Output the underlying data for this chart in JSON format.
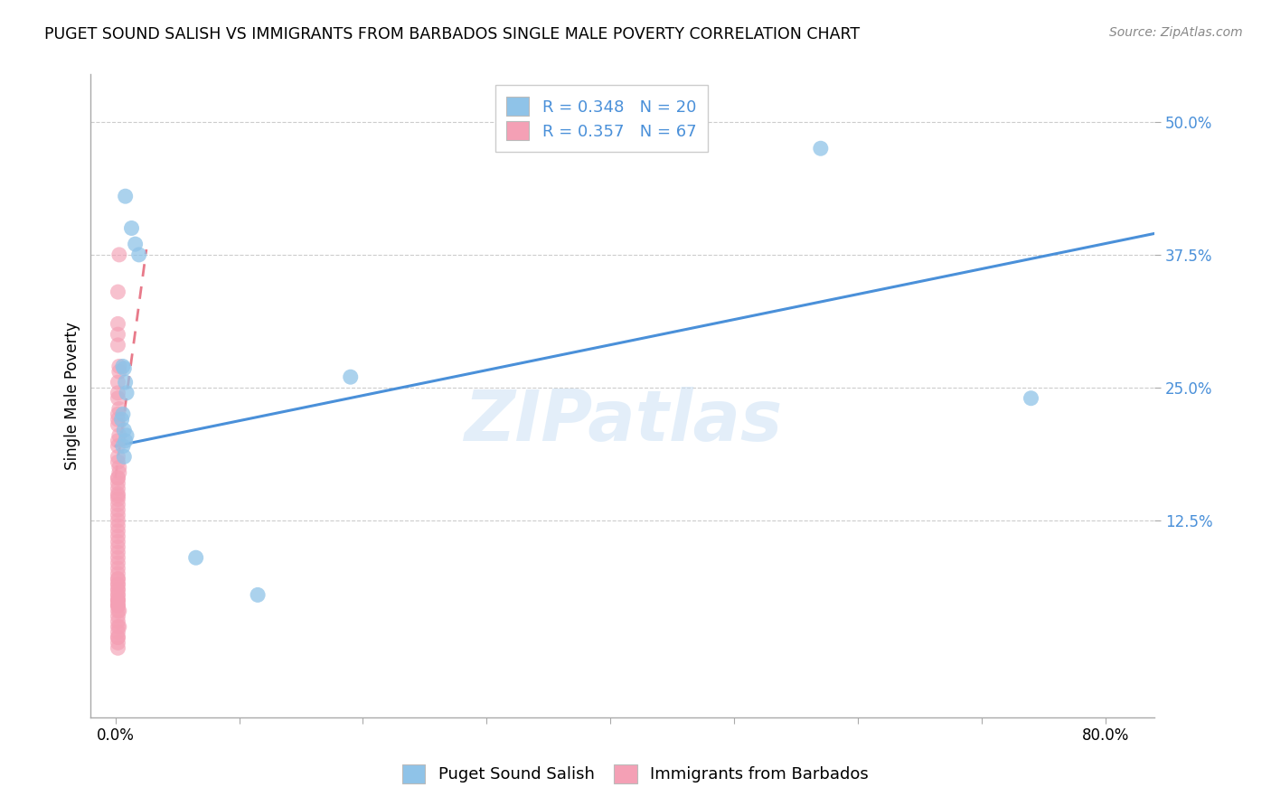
{
  "title": "PUGET SOUND SALISH VS IMMIGRANTS FROM BARBADOS SINGLE MALE POVERTY CORRELATION CHART",
  "source": "Source: ZipAtlas.com",
  "ylabel": "Single Male Poverty",
  "ytick_labels": [
    "12.5%",
    "25.0%",
    "37.5%",
    "50.0%"
  ],
  "ytick_values": [
    0.125,
    0.25,
    0.375,
    0.5
  ],
  "xtick_values": [
    0.0,
    0.1,
    0.2,
    0.3,
    0.4,
    0.5,
    0.6,
    0.7,
    0.8
  ],
  "xlim": [
    -0.02,
    0.84
  ],
  "ylim": [
    -0.06,
    0.545
  ],
  "blue_color": "#8fc3e8",
  "pink_color": "#f4a0b5",
  "blue_line_color": "#4a90d9",
  "pink_line_color": "#e87a8a",
  "legend_R_blue": "0.348",
  "legend_N_blue": "20",
  "legend_R_pink": "0.357",
  "legend_N_pink": "67",
  "watermark": "ZIPatlas",
  "legend_label_blue": "Puget Sound Salish",
  "legend_label_pink": "Immigrants from Barbados",
  "blue_scatter_x": [
    0.008,
    0.013,
    0.016,
    0.019,
    0.006,
    0.007,
    0.008,
    0.009,
    0.006,
    0.005,
    0.007,
    0.008,
    0.19,
    0.006,
    0.007,
    0.009,
    0.57,
    0.74,
    0.065,
    0.115
  ],
  "blue_scatter_y": [
    0.43,
    0.4,
    0.385,
    0.375,
    0.27,
    0.268,
    0.255,
    0.245,
    0.225,
    0.22,
    0.21,
    0.2,
    0.26,
    0.195,
    0.185,
    0.205,
    0.475,
    0.24,
    0.09,
    0.055
  ],
  "pink_scatter_x": [
    0.003,
    0.002,
    0.002,
    0.002,
    0.002,
    0.003,
    0.003,
    0.002,
    0.002,
    0.002,
    0.003,
    0.002,
    0.002,
    0.002,
    0.003,
    0.002,
    0.002,
    0.002,
    0.002,
    0.003,
    0.003,
    0.002,
    0.002,
    0.002,
    0.002,
    0.002,
    0.002,
    0.002,
    0.002,
    0.002,
    0.002,
    0.002,
    0.002,
    0.002,
    0.002,
    0.002,
    0.002,
    0.002,
    0.002,
    0.002,
    0.002,
    0.002,
    0.002,
    0.002,
    0.002,
    0.002,
    0.002,
    0.002,
    0.003,
    0.002,
    0.002,
    0.003,
    0.002,
    0.002,
    0.002,
    0.002,
    0.002,
    0.002,
    0.002,
    0.002,
    0.002,
    0.002,
    0.002,
    0.002,
    0.002,
    0.002,
    0.002
  ],
  "pink_scatter_y": [
    0.375,
    0.34,
    0.31,
    0.3,
    0.29,
    0.27,
    0.265,
    0.255,
    0.245,
    0.24,
    0.23,
    0.225,
    0.22,
    0.215,
    0.205,
    0.2,
    0.195,
    0.185,
    0.18,
    0.175,
    0.17,
    0.165,
    0.165,
    0.16,
    0.155,
    0.15,
    0.148,
    0.145,
    0.14,
    0.135,
    0.13,
    0.125,
    0.12,
    0.115,
    0.11,
    0.105,
    0.1,
    0.095,
    0.09,
    0.085,
    0.08,
    0.075,
    0.07,
    0.065,
    0.06,
    0.055,
    0.05,
    0.045,
    0.04,
    0.035,
    0.03,
    0.025,
    0.025,
    0.02,
    0.015,
    0.015,
    0.01,
    0.005,
    0.05,
    0.04,
    0.045,
    0.06,
    0.07,
    0.065,
    0.055,
    0.05,
    0.045
  ],
  "blue_line_x": [
    0.0,
    0.84
  ],
  "blue_line_y": [
    0.195,
    0.395
  ],
  "pink_line_x": [
    0.0,
    0.025
  ],
  "pink_line_y": [
    0.165,
    0.38
  ]
}
